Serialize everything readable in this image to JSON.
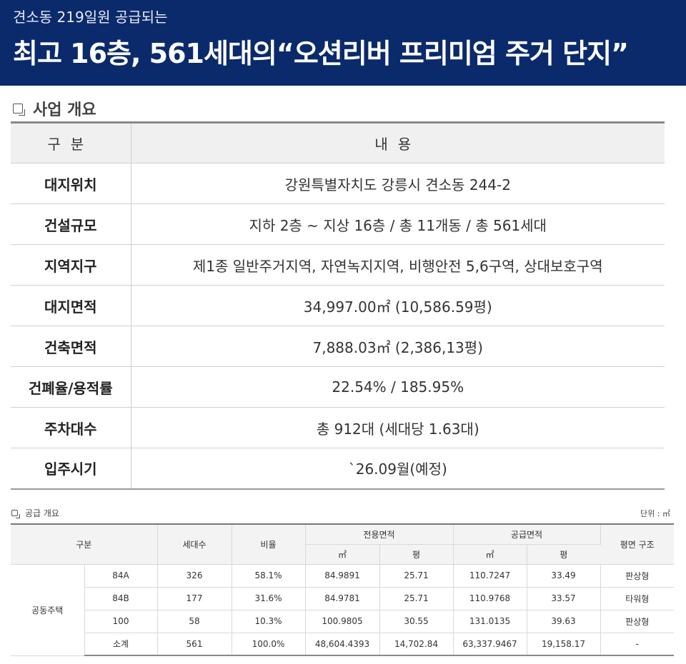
{
  "banner": {
    "subtitle": "견소동 219일원 공급되는",
    "title": "최고 16층, 561세대의“오션리버 프리미엄 주거 단지”"
  },
  "business": {
    "section_title": "사업 개요",
    "header": {
      "col1": "구분",
      "col2": "내용"
    },
    "rows": [
      {
        "label": "대지위치",
        "value": "강원특별자치도 강릉시 견소동 244-2"
      },
      {
        "label": "건설규모",
        "value": "지하 2층 ~ 지상 16층 / 총 11개동 / 총 561세대"
      },
      {
        "label": "지역지구",
        "value": "제1종 일반주거지역, 자연녹지지역, 비행안전 5,6구역, 상대보호구역"
      },
      {
        "label": "대지면적",
        "value": "34,997.00㎡ (10,586.59평)"
      },
      {
        "label": "건축면적",
        "value": "7,888.03㎡ (2,386,13평)"
      },
      {
        "label": "건폐율/용적률",
        "value": "22.54% / 185.95%"
      },
      {
        "label": "주차대수",
        "value": "총 912대 (세대당 1.63대)"
      },
      {
        "label": "입주시기",
        "value": "`26.09월(예정)"
      }
    ]
  },
  "supply": {
    "section_title": "공급 개요",
    "unit": "단위 : ㎡",
    "headers": {
      "category": "구분",
      "households": "세대수",
      "ratio": "비율",
      "exclusive_area": "전용면적",
      "supply_area": "공급면적",
      "floor_plan": "평면 구조",
      "sqm": "㎡",
      "pyeong": "평"
    },
    "group": "공동주택",
    "rows": [
      {
        "type": "84A",
        "households": "326",
        "ratio": "58.1%",
        "ex_sqm": "84.9891",
        "ex_py": "25.71",
        "sup_sqm": "110.7247",
        "sup_py": "33.49",
        "plan": "판상형"
      },
      {
        "type": "84B",
        "households": "177",
        "ratio": "31.6%",
        "ex_sqm": "84.9781",
        "ex_py": "25.71",
        "sup_sqm": "110.9768",
        "sup_py": "33.57",
        "plan": "타워형"
      },
      {
        "type": "100",
        "households": "58",
        "ratio": "10.3%",
        "ex_sqm": "100.9805",
        "ex_py": "30.55",
        "sup_sqm": "131.0135",
        "sup_py": "39.63",
        "plan": "판상형"
      },
      {
        "type": "소계",
        "households": "561",
        "ratio": "100.0%",
        "ex_sqm": "48,604.4393",
        "ex_py": "14,702.84",
        "sup_sqm": "63,337.9467",
        "sup_py": "19,158.17",
        "plan": "-"
      }
    ]
  }
}
